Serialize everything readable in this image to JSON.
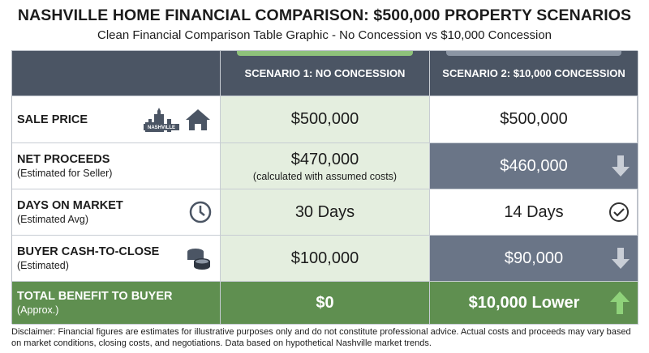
{
  "header": {
    "title": "NASHVILLE HOME FINANCIAL COMPARISON: $500,000 PROPERTY SCENARIOS",
    "subtitle": "Clean Financial Comparison Table Graphic - No Concession vs $10,000 Concession"
  },
  "table": {
    "columns": [
      "SCENARIO 1: NO CONCESSION",
      "SCENARIO 2: $10,000 CONCESSION"
    ],
    "rows": [
      {
        "label": "SALE PRICE",
        "icon_text": "NASHVILLE",
        "cells": [
          {
            "text": "$500,000"
          },
          {
            "text": "$500,000"
          }
        ]
      },
      {
        "label": "NET PROCEEDS",
        "sublabel": "(Estimated for Seller)",
        "cells": [
          {
            "text": "$470,000",
            "note": "(calculated with assumed costs)"
          },
          {
            "text": "$460,000"
          }
        ]
      },
      {
        "label": "DAYS ON MARKET",
        "sublabel": "(Estimated Avg)",
        "cells": [
          {
            "text": "30 Days"
          },
          {
            "text": "14 Days"
          }
        ]
      },
      {
        "label": "BUYER CASH-TO-CLOSE",
        "sublabel": "(Estimated)",
        "cells": [
          {
            "text": "$100,000"
          },
          {
            "text": "$90,000"
          }
        ]
      },
      {
        "label": "TOTAL BENEFIT TO BUYER",
        "sublabel": "(Approx.)",
        "cells": [
          {
            "text": "$0"
          },
          {
            "text": "$10,000 Lower"
          }
        ]
      }
    ]
  },
  "disclaimer": "Disclaimer: Financial figures are estimates for illustrative purposes only and do not constitute professional advice. Actual costs and proceeds may vary based on market conditions, closing costs, and negotiations. Data based on hypothetical Nashville market trends."
}
